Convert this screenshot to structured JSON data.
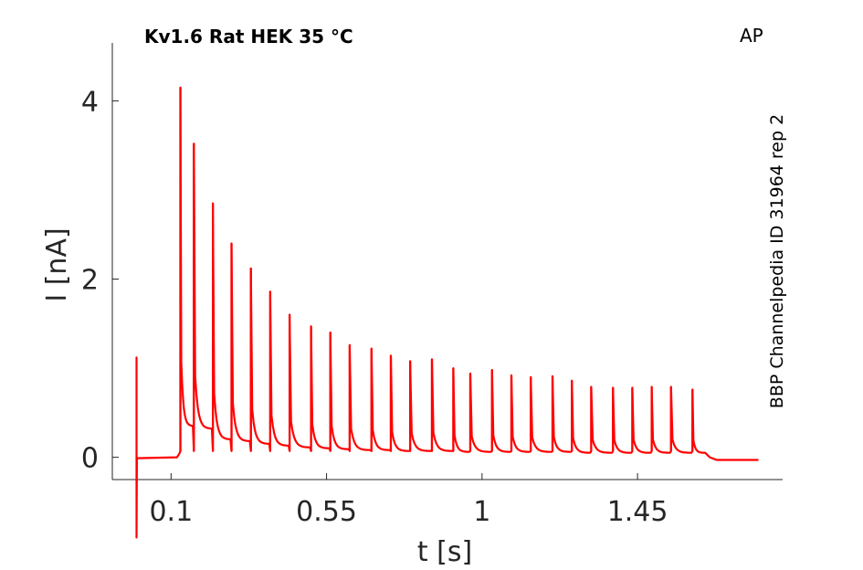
{
  "chart_data": {
    "type": "line",
    "title": "Kv1.6  Rat  HEK  35 °C",
    "corner_label": "AP",
    "side_label": "BBP Channelpedia ID 31964 rep 2",
    "xlabel": "t [s]",
    "ylabel": "I [nA]",
    "xlim": [
      -0.07,
      1.87
    ],
    "ylim": [
      -0.25,
      4.65
    ],
    "xticks": [
      0.1,
      0.55,
      1,
      1.45
    ],
    "xtick_labels": [
      "0.1",
      "0.55",
      "1",
      "1.45"
    ],
    "yticks": [
      0,
      2,
      4
    ],
    "ytick_labels": [
      "0",
      "2",
      "4"
    ],
    "grid": false,
    "color": "#ff0000",
    "baseline": -0.01,
    "end_level": -0.03,
    "capacitive_transient": {
      "t": 0.0,
      "max": 1.12,
      "min": -0.9
    },
    "trace_end_t": 1.8,
    "spikes": [
      {
        "t": 0.127,
        "peak": 4.15,
        "trough": 0.35
      },
      {
        "t": 0.166,
        "peak": 3.52,
        "trough": 0.32
      },
      {
        "t": 0.221,
        "peak": 2.85,
        "trough": 0.2
      },
      {
        "t": 0.275,
        "peak": 2.4,
        "trough": 0.18
      },
      {
        "t": 0.331,
        "peak": 2.12,
        "trough": 0.15
      },
      {
        "t": 0.387,
        "peak": 1.86,
        "trough": 0.13
      },
      {
        "t": 0.443,
        "peak": 1.6,
        "trough": 0.11
      },
      {
        "t": 0.505,
        "peak": 1.47,
        "trough": 0.1
      },
      {
        "t": 0.561,
        "peak": 1.4,
        "trough": 0.09
      },
      {
        "t": 0.617,
        "peak": 1.26,
        "trough": 0.08
      },
      {
        "t": 0.68,
        "peak": 1.22,
        "trough": 0.08
      },
      {
        "t": 0.736,
        "peak": 1.14,
        "trough": 0.07
      },
      {
        "t": 0.792,
        "peak": 1.08,
        "trough": 0.07
      },
      {
        "t": 0.855,
        "peak": 1.1,
        "trough": 0.07
      },
      {
        "t": 0.917,
        "peak": 1.0,
        "trough": 0.06
      },
      {
        "t": 0.966,
        "peak": 0.94,
        "trough": 0.06
      },
      {
        "t": 1.029,
        "peak": 0.98,
        "trough": 0.06
      },
      {
        "t": 1.085,
        "peak": 0.92,
        "trough": 0.06
      },
      {
        "t": 1.141,
        "peak": 0.9,
        "trough": 0.06
      },
      {
        "t": 1.204,
        "peak": 0.91,
        "trough": 0.06
      },
      {
        "t": 1.26,
        "peak": 0.86,
        "trough": 0.05
      },
      {
        "t": 1.316,
        "peak": 0.79,
        "trough": 0.05
      },
      {
        "t": 1.379,
        "peak": 0.78,
        "trough": 0.05
      },
      {
        "t": 1.435,
        "peak": 0.78,
        "trough": 0.05
      },
      {
        "t": 1.491,
        "peak": 0.79,
        "trough": 0.05
      },
      {
        "t": 1.547,
        "peak": 0.79,
        "trough": 0.05
      },
      {
        "t": 1.609,
        "peak": 0.76,
        "trough": 0.05
      }
    ]
  }
}
